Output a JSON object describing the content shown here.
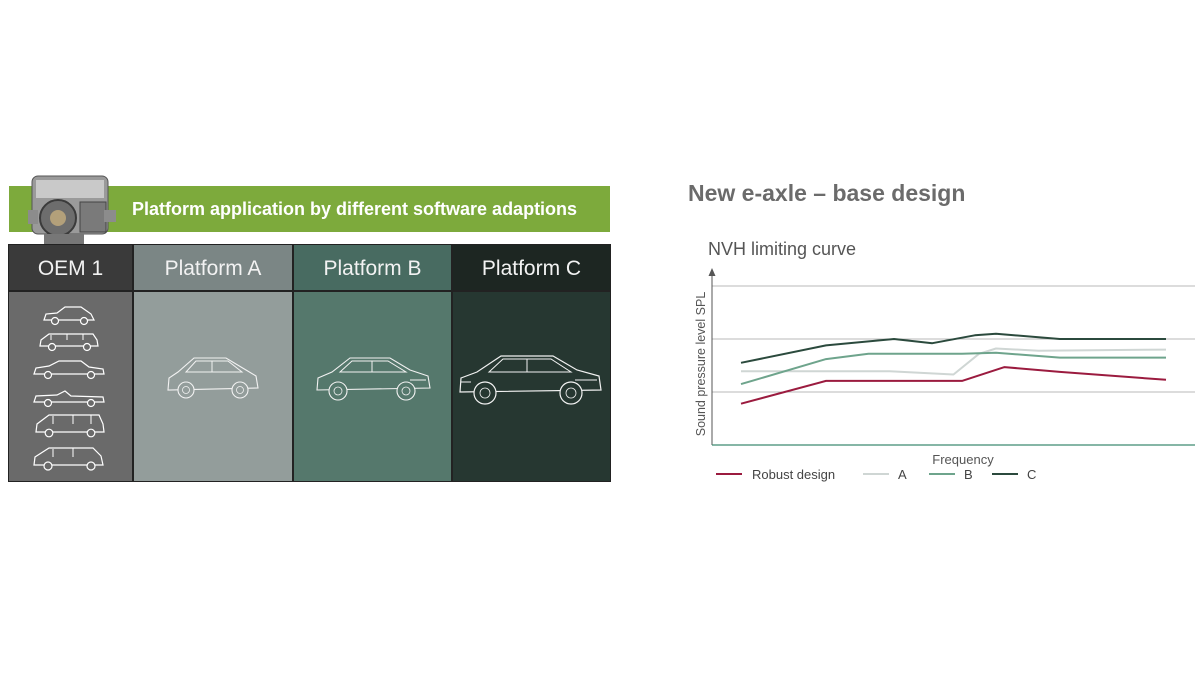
{
  "banner": {
    "text": "Platform application by different software adaptions"
  },
  "columns": [
    {
      "header": "OEM 1",
      "vehicles": [
        "hatchback-icon",
        "wagon-icon",
        "sedan-icon",
        "convertible-icon",
        "van-icon",
        "estate-icon"
      ]
    },
    {
      "header": "Platform A",
      "vehicle": "hatchback-icon"
    },
    {
      "header": "Platform B",
      "vehicle": "sedan-icon"
    },
    {
      "header": "Platform C",
      "vehicle": "luxury-sedan-icon"
    }
  ],
  "colors": {
    "banner": "#7daa3c",
    "oem": "#6a6a6a",
    "platform_a": "#939d9b",
    "platform_b": "#55786c",
    "platform_c": "#263731"
  },
  "chart_data": {
    "type": "line",
    "title": "New e-axle – base design",
    "subtitle": "NVH limiting curve",
    "xlabel": "Frequency",
    "ylabel": "Sound pressure level SPL",
    "ylim": [
      0,
      3
    ],
    "xlim": [
      0,
      10
    ],
    "grid": "horizontal",
    "legend_position": "bottom",
    "series": [
      {
        "name": "Robust design",
        "color": "#9b1b3f",
        "x": [
          0,
          2,
          3.5,
          5.2,
          6.2,
          7.5,
          10
        ],
        "y": [
          0.78,
          1.21,
          1.21,
          1.21,
          1.47,
          1.38,
          1.23
        ]
      },
      {
        "name": "A",
        "color": "#cfd6d4",
        "x": [
          0,
          2,
          3.5,
          5.0,
          5.6,
          6.0,
          7.0,
          10
        ],
        "y": [
          1.39,
          1.39,
          1.39,
          1.33,
          1.72,
          1.82,
          1.78,
          1.8
        ]
      },
      {
        "name": "B",
        "color": "#6ea48c",
        "x": [
          0,
          2,
          3,
          5.2,
          6.0,
          7.5,
          10
        ],
        "y": [
          1.15,
          1.62,
          1.72,
          1.72,
          1.74,
          1.65,
          1.65
        ]
      },
      {
        "name": "C",
        "color": "#2b4a3d",
        "x": [
          0,
          2,
          3.6,
          4.5,
          5.5,
          6.0,
          7.5,
          10
        ],
        "y": [
          1.55,
          1.88,
          2.0,
          1.92,
          2.07,
          2.1,
          2.0,
          2.0
        ]
      }
    ]
  }
}
